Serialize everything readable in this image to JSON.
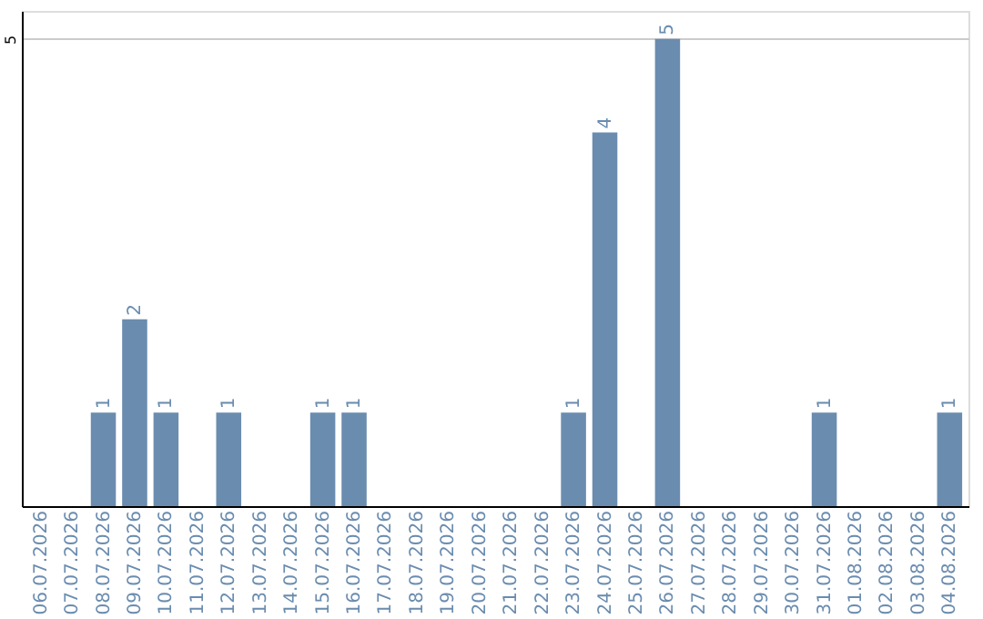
{
  "chart_data": {
    "type": "bar",
    "categories": [
      "06.07.2026",
      "07.07.2026",
      "08.07.2026",
      "09.07.2026",
      "10.07.2026",
      "11.07.2026",
      "12.07.2026",
      "13.07.2026",
      "14.07.2026",
      "15.07.2026",
      "16.07.2026",
      "17.07.2026",
      "18.07.2026",
      "19.07.2026",
      "20.07.2026",
      "21.07.2026",
      "22.07.2026",
      "23.07.2026",
      "24.07.2026",
      "25.07.2026",
      "26.07.2026",
      "27.07.2026",
      "28.07.2026",
      "29.07.2026",
      "30.07.2026",
      "31.07.2026",
      "01.08.2026",
      "02.08.2026",
      "03.08.2026",
      "04.08.2026"
    ],
    "values": [
      0,
      0,
      1,
      2,
      1,
      0,
      1,
      0,
      0,
      1,
      1,
      0,
      0,
      0,
      0,
      0,
      0,
      1,
      4,
      0,
      5,
      0,
      0,
      0,
      0,
      1,
      0,
      0,
      0,
      1
    ],
    "value_labels": [
      null,
      null,
      "1",
      "2",
      "1",
      null,
      "1",
      null,
      null,
      "1",
      "1",
      null,
      null,
      null,
      null,
      null,
      null,
      "1",
      "4",
      null,
      "5",
      null,
      null,
      null,
      null,
      "1",
      null,
      null,
      null,
      "1"
    ],
    "color": "#6a8caf",
    "ylim": [
      0,
      5.3
    ],
    "yticks": [
      5
    ],
    "grid": "y"
  }
}
